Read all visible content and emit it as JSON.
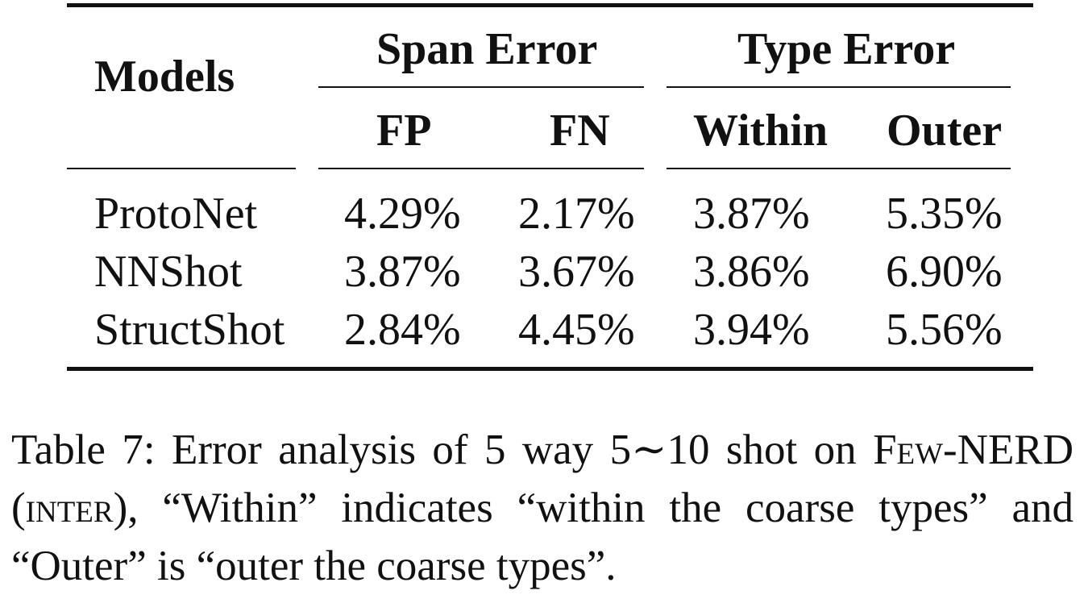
{
  "table": {
    "header": {
      "models": "Models",
      "span_error": "Span Error",
      "type_error": "Type Error",
      "fp": "FP",
      "fn": "FN",
      "within": "Within",
      "outer": "Outer"
    },
    "rows": [
      {
        "model": "ProtoNet",
        "fp": "4.29%",
        "fn": "2.17%",
        "within": "3.87%",
        "outer": "5.35%"
      },
      {
        "model": "NNShot",
        "fp": "3.87%",
        "fn": "3.67%",
        "within": "3.86%",
        "outer": "6.90%"
      },
      {
        "model": "StructShot",
        "fp": "2.84%",
        "fn": "4.45%",
        "within": "3.94%",
        "outer": "5.56%"
      }
    ]
  },
  "caption": {
    "part1": "Table 7:  Error analysis of 5 way 5∼10 shot on ",
    "dataset": "Few-NERD",
    "part2": " (",
    "setting": "inter",
    "part3": "), “Within” indicates “within the coarse types” and “Outer” is “outer the coarse types”."
  }
}
